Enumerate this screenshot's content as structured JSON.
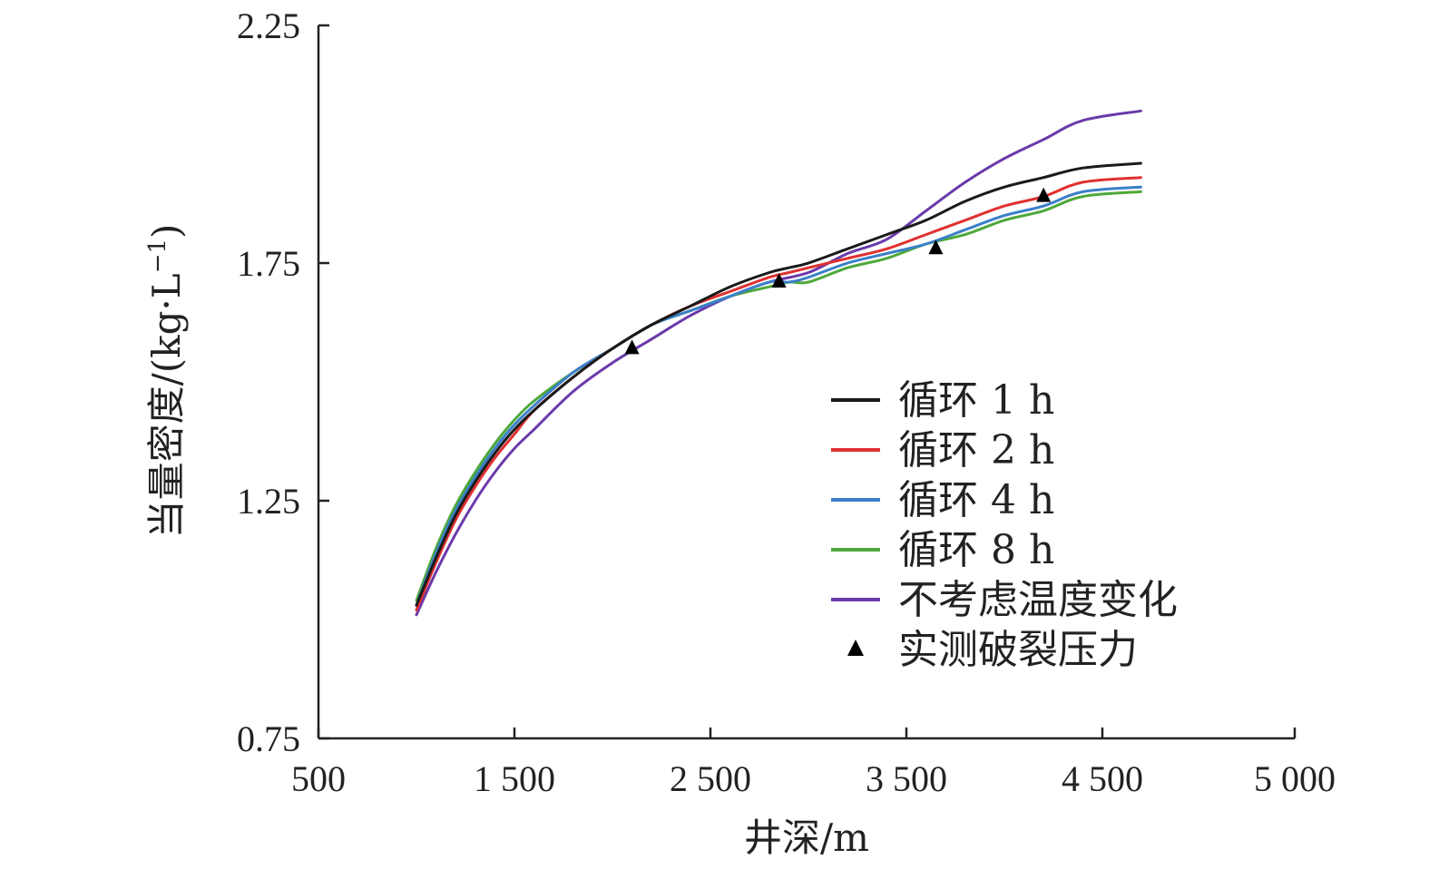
{
  "chart_data": {
    "type": "line",
    "title": "",
    "xlabel": "井深/m",
    "ylabel": "当量密度/(kg·L",
    "ylabel_sup": "−1",
    "ylabel_close": ")",
    "xlim": [
      500,
      5000
    ],
    "ylim": [
      0.75,
      2.25
    ],
    "x_ticks": [
      500,
      1500,
      2500,
      3500,
      4500,
      5000
    ],
    "x_tick_labels": [
      "500",
      "1 500",
      "2 500",
      "3 500",
      "4 500",
      "5 000"
    ],
    "y_ticks": [
      0.75,
      1.25,
      1.75,
      2.25
    ],
    "y_tick_labels": [
      "0.75",
      "1.25",
      "1.75",
      "2.25"
    ],
    "legend_position": "center-right",
    "series": [
      {
        "name": "循环 1 h",
        "color": "#1a1a1a",
        "x": [
          1000,
          1100,
          1200,
          1300,
          1400,
          1500,
          1600,
          1800,
          2000,
          2200,
          2400,
          2600,
          2800,
          2900,
          3000,
          3200,
          3400,
          3600,
          3800,
          4000,
          4200,
          4400,
          4600
        ],
        "y": [
          1.03,
          1.13,
          1.22,
          1.29,
          1.35,
          1.4,
          1.44,
          1.51,
          1.57,
          1.62,
          1.66,
          1.7,
          1.73,
          1.74,
          1.75,
          1.78,
          1.81,
          1.84,
          1.88,
          1.91,
          1.93,
          1.95,
          1.96
        ]
      },
      {
        "name": "循环 2 h",
        "color": "#e03030",
        "x": [
          1000,
          1100,
          1200,
          1300,
          1400,
          1500,
          1600,
          1800,
          2000,
          2200,
          2400,
          2600,
          2800,
          2900,
          3000,
          3200,
          3400,
          3600,
          3800,
          4000,
          4200,
          4400,
          4600
        ],
        "y": [
          1.02,
          1.12,
          1.21,
          1.28,
          1.34,
          1.39,
          1.44,
          1.51,
          1.57,
          1.62,
          1.66,
          1.69,
          1.72,
          1.73,
          1.74,
          1.76,
          1.78,
          1.81,
          1.84,
          1.87,
          1.89,
          1.92,
          1.93
        ]
      },
      {
        "name": "循环 4 h",
        "color": "#3a7fc8",
        "x": [
          1000,
          1100,
          1200,
          1300,
          1400,
          1500,
          1600,
          1800,
          2000,
          2200,
          2400,
          2600,
          2800,
          2900,
          3000,
          3200,
          3400,
          3600,
          3800,
          4000,
          4200,
          4400,
          4600
        ],
        "y": [
          1.03,
          1.14,
          1.23,
          1.3,
          1.36,
          1.41,
          1.45,
          1.52,
          1.57,
          1.62,
          1.65,
          1.68,
          1.71,
          1.71,
          1.72,
          1.75,
          1.77,
          1.79,
          1.82,
          1.85,
          1.87,
          1.9,
          1.91
        ]
      },
      {
        "name": "循环 8 h",
        "color": "#4ea83a",
        "x": [
          1000,
          1100,
          1200,
          1300,
          1400,
          1500,
          1600,
          1800,
          2000,
          2200,
          2400,
          2600,
          2800,
          2900,
          3000,
          3200,
          3400,
          3600,
          3800,
          4000,
          4200,
          4400,
          4600
        ],
        "y": [
          1.04,
          1.15,
          1.24,
          1.31,
          1.37,
          1.42,
          1.46,
          1.52,
          1.57,
          1.62,
          1.65,
          1.68,
          1.7,
          1.71,
          1.71,
          1.74,
          1.76,
          1.79,
          1.81,
          1.84,
          1.86,
          1.89,
          1.9
        ]
      },
      {
        "name": "不考虑温度变化",
        "color": "#6a3aaa",
        "x": [
          1000,
          1100,
          1200,
          1300,
          1400,
          1500,
          1600,
          1800,
          2000,
          2200,
          2400,
          2600,
          2800,
          3000,
          3200,
          3400,
          3600,
          3800,
          4000,
          4200,
          4400,
          4600
        ],
        "y": [
          1.01,
          1.1,
          1.18,
          1.25,
          1.31,
          1.36,
          1.4,
          1.48,
          1.54,
          1.59,
          1.64,
          1.68,
          1.71,
          1.73,
          1.77,
          1.8,
          1.86,
          1.92,
          1.97,
          2.01,
          2.05,
          2.07
        ]
      }
    ],
    "markers": {
      "name": "实测破裂压力",
      "symbol": "triangle",
      "color": "#000000",
      "x": [
        2100,
        2850,
        3650,
        4200
      ],
      "y": [
        1.57,
        1.71,
        1.78,
        1.89
      ]
    },
    "legend": [
      {
        "label": "循环 1 h",
        "kind": "line",
        "color": "#1a1a1a"
      },
      {
        "label": "循环 2 h",
        "kind": "line",
        "color": "#e03030"
      },
      {
        "label": "循环 4 h",
        "kind": "line",
        "color": "#3a7fc8"
      },
      {
        "label": "循环 8 h",
        "kind": "line",
        "color": "#4ea83a"
      },
      {
        "label": "不考虑温度变化",
        "kind": "line",
        "color": "#6a3aaa"
      },
      {
        "label": "实测破裂压力",
        "kind": "marker",
        "color": "#000000"
      }
    ]
  }
}
